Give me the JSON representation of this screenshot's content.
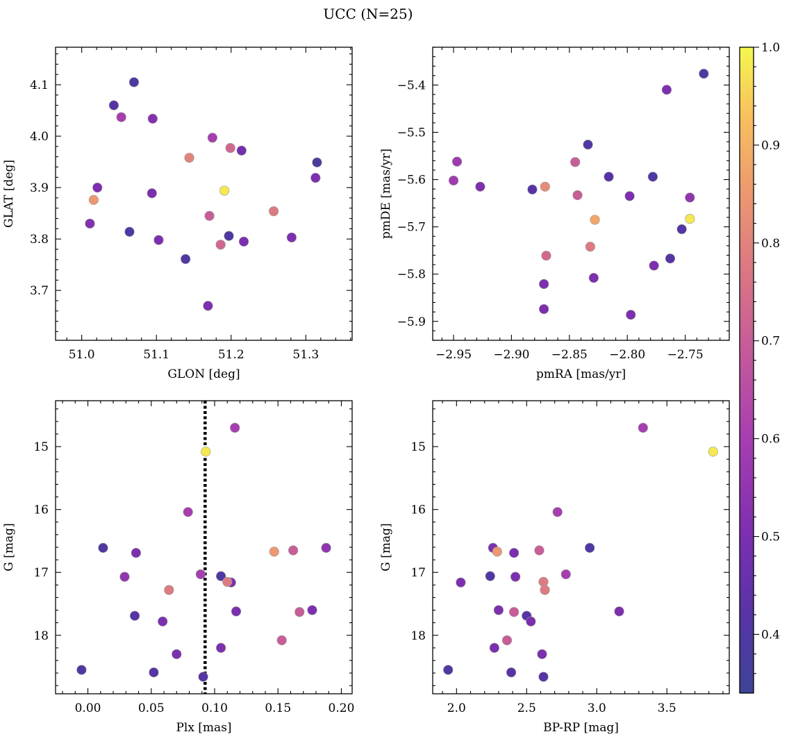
{
  "figure_title": "UCC (N=25)",
  "colorbar": {
    "min": 0.34,
    "max": 1.0,
    "ticks": [
      0.4,
      0.5,
      0.6,
      0.7,
      0.8,
      0.9,
      1.0
    ],
    "tick_labels": [
      "0.4",
      "0.5",
      "0.6",
      "0.7",
      "0.8",
      "0.9",
      "1.0"
    ],
    "colormap": "plasma"
  },
  "chart_data": [
    {
      "type": "scatter",
      "xlabel": "GLON [deg]",
      "ylabel": "GLAT [deg]",
      "xlim": [
        50.965,
        51.362
      ],
      "ylim": [
        3.603,
        4.173
      ],
      "y_inverted": false,
      "xticks": [
        51.0,
        51.1,
        51.2,
        51.3
      ],
      "xtick_labels": [
        "51.0",
        "51.1",
        "51.2",
        "51.3"
      ],
      "yticks": [
        3.7,
        3.8,
        3.9,
        4.0,
        4.1
      ],
      "ytick_labels": [
        "3.7",
        "3.8",
        "3.9",
        "4.0",
        "4.1"
      ],
      "x_minor_step": 0.02,
      "y_minor_step": 0.02,
      "points": [
        {
          "x": 51.07,
          "y": 4.105,
          "c": 0.4
        },
        {
          "x": 51.043,
          "y": 4.06,
          "c": 0.42
        },
        {
          "x": 51.053,
          "y": 4.037,
          "c": 0.6
        },
        {
          "x": 51.095,
          "y": 4.034,
          "c": 0.52
        },
        {
          "x": 51.175,
          "y": 3.997,
          "c": 0.6
        },
        {
          "x": 51.199,
          "y": 3.977,
          "c": 0.73
        },
        {
          "x": 51.214,
          "y": 3.972,
          "c": 0.48
        },
        {
          "x": 51.144,
          "y": 3.958,
          "c": 0.8
        },
        {
          "x": 51.315,
          "y": 3.949,
          "c": 0.38
        },
        {
          "x": 51.313,
          "y": 3.919,
          "c": 0.5
        },
        {
          "x": 51.021,
          "y": 3.9,
          "c": 0.5
        },
        {
          "x": 51.191,
          "y": 3.894,
          "c": 0.98
        },
        {
          "x": 51.094,
          "y": 3.889,
          "c": 0.5
        },
        {
          "x": 51.016,
          "y": 3.876,
          "c": 0.85
        },
        {
          "x": 51.257,
          "y": 3.854,
          "c": 0.78
        },
        {
          "x": 51.171,
          "y": 3.845,
          "c": 0.7
        },
        {
          "x": 51.011,
          "y": 3.83,
          "c": 0.52
        },
        {
          "x": 51.064,
          "y": 3.814,
          "c": 0.4
        },
        {
          "x": 51.197,
          "y": 3.806,
          "c": 0.4
        },
        {
          "x": 51.281,
          "y": 3.803,
          "c": 0.5
        },
        {
          "x": 51.103,
          "y": 3.798,
          "c": 0.5
        },
        {
          "x": 51.217,
          "y": 3.795,
          "c": 0.5
        },
        {
          "x": 51.186,
          "y": 3.789,
          "c": 0.73
        },
        {
          "x": 51.139,
          "y": 3.761,
          "c": 0.4
        },
        {
          "x": 51.169,
          "y": 3.67,
          "c": 0.5
        }
      ]
    },
    {
      "type": "scatter",
      "xlabel": "pmRA [mas/yr]",
      "ylabel": "pmDE [mas/yr]",
      "xlim": [
        -2.968,
        -2.712
      ],
      "ylim": [
        -5.94,
        -5.32
      ],
      "y_inverted": false,
      "xticks": [
        -2.95,
        -2.9,
        -2.85,
        -2.8,
        -2.75
      ],
      "xtick_labels": [
        "−2.95",
        "−2.90",
        "−2.85",
        "−2.80",
        "−2.75"
      ],
      "yticks": [
        -5.9,
        -5.8,
        -5.7,
        -5.6,
        -5.5,
        -5.4
      ],
      "ytick_labels": [
        "−5.9",
        "−5.8",
        "−5.7",
        "−5.6",
        "−5.5",
        "−5.4"
      ],
      "x_minor_step": 0.01,
      "y_minor_step": 0.02,
      "points": [
        {
          "x": -2.734,
          "y": -5.376,
          "c": 0.38
        },
        {
          "x": -2.766,
          "y": -5.41,
          "c": 0.5
        },
        {
          "x": -2.834,
          "y": -5.526,
          "c": 0.4
        },
        {
          "x": -2.947,
          "y": -5.562,
          "c": 0.58
        },
        {
          "x": -2.845,
          "y": -5.563,
          "c": 0.7
        },
        {
          "x": -2.816,
          "y": -5.594,
          "c": 0.42
        },
        {
          "x": -2.778,
          "y": -5.594,
          "c": 0.4
        },
        {
          "x": -2.95,
          "y": -5.602,
          "c": 0.58
        },
        {
          "x": -2.927,
          "y": -5.615,
          "c": 0.5
        },
        {
          "x": -2.871,
          "y": -5.615,
          "c": 0.82
        },
        {
          "x": -2.882,
          "y": -5.621,
          "c": 0.42
        },
        {
          "x": -2.843,
          "y": -5.633,
          "c": 0.7
        },
        {
          "x": -2.798,
          "y": -5.635,
          "c": 0.5
        },
        {
          "x": -2.746,
          "y": -5.638,
          "c": 0.55
        },
        {
          "x": -2.746,
          "y": -5.683,
          "c": 0.98
        },
        {
          "x": -2.828,
          "y": -5.685,
          "c": 0.88
        },
        {
          "x": -2.753,
          "y": -5.705,
          "c": 0.42
        },
        {
          "x": -2.832,
          "y": -5.742,
          "c": 0.78
        },
        {
          "x": -2.87,
          "y": -5.761,
          "c": 0.73
        },
        {
          "x": -2.763,
          "y": -5.767,
          "c": 0.42
        },
        {
          "x": -2.777,
          "y": -5.782,
          "c": 0.5
        },
        {
          "x": -2.829,
          "y": -5.808,
          "c": 0.5
        },
        {
          "x": -2.872,
          "y": -5.821,
          "c": 0.5
        },
        {
          "x": -2.872,
          "y": -5.874,
          "c": 0.5
        },
        {
          "x": -2.797,
          "y": -5.886,
          "c": 0.5
        }
      ]
    },
    {
      "type": "scatter",
      "xlabel": "Plx [mas]",
      "ylabel": "G [mag]",
      "xlim": [
        -0.0255,
        0.2085
      ],
      "ylim": [
        18.93,
        14.27
      ],
      "y_inverted": true,
      "xticks": [
        0.0,
        0.05,
        0.1,
        0.15,
        0.2
      ],
      "xtick_labels": [
        "0.00",
        "0.05",
        "0.10",
        "0.15",
        "0.20"
      ],
      "yticks": [
        15,
        16,
        17,
        18
      ],
      "ytick_labels": [
        "15",
        "16",
        "17",
        "18"
      ],
      "x_minor_step": 0.01,
      "y_minor_step": 0.2,
      "vline": {
        "x": 0.0925,
        "style": "dotted"
      },
      "points": [
        {
          "x": 0.116,
          "y": 14.7,
          "c": 0.6
        },
        {
          "x": 0.093,
          "y": 15.08,
          "c": 0.98
        },
        {
          "x": 0.079,
          "y": 16.04,
          "c": 0.6
        },
        {
          "x": 0.012,
          "y": 16.61,
          "c": 0.4
        },
        {
          "x": 0.188,
          "y": 16.61,
          "c": 0.55
        },
        {
          "x": 0.038,
          "y": 16.69,
          "c": 0.5
        },
        {
          "x": 0.147,
          "y": 16.67,
          "c": 0.85
        },
        {
          "x": 0.162,
          "y": 16.65,
          "c": 0.7
        },
        {
          "x": 0.089,
          "y": 17.03,
          "c": 0.6
        },
        {
          "x": 0.029,
          "y": 17.07,
          "c": 0.55
        },
        {
          "x": 0.105,
          "y": 17.06,
          "c": 0.4
        },
        {
          "x": 0.11,
          "y": 17.15,
          "c": 0.78
        },
        {
          "x": 0.113,
          "y": 17.16,
          "c": 0.5
        },
        {
          "x": 0.064,
          "y": 17.28,
          "c": 0.78
        },
        {
          "x": 0.117,
          "y": 17.62,
          "c": 0.5
        },
        {
          "x": 0.167,
          "y": 17.63,
          "c": 0.7
        },
        {
          "x": 0.177,
          "y": 17.6,
          "c": 0.5
        },
        {
          "x": 0.037,
          "y": 17.69,
          "c": 0.42
        },
        {
          "x": 0.059,
          "y": 17.78,
          "c": 0.5
        },
        {
          "x": 0.153,
          "y": 18.08,
          "c": 0.7
        },
        {
          "x": 0.105,
          "y": 18.2,
          "c": 0.5
        },
        {
          "x": 0.07,
          "y": 18.3,
          "c": 0.5
        },
        {
          "x": -0.005,
          "y": 18.55,
          "c": 0.4
        },
        {
          "x": 0.052,
          "y": 18.59,
          "c": 0.42
        },
        {
          "x": 0.091,
          "y": 18.66,
          "c": 0.42
        }
      ]
    },
    {
      "type": "scatter",
      "xlabel": "BP-RP [mag]",
      "ylabel": "G [mag]",
      "xlim": [
        1.83,
        3.945
      ],
      "ylim": [
        18.93,
        14.27
      ],
      "y_inverted": true,
      "xticks": [
        2.0,
        2.5,
        3.0,
        3.5
      ],
      "xtick_labels": [
        "2.0",
        "2.5",
        "3.0",
        "3.5"
      ],
      "yticks": [
        15,
        16,
        17,
        18
      ],
      "ytick_labels": [
        "15",
        "16",
        "17",
        "18"
      ],
      "x_minor_step": 0.1,
      "y_minor_step": 0.2,
      "points": [
        {
          "x": 3.33,
          "y": 14.7,
          "c": 0.6
        },
        {
          "x": 3.83,
          "y": 15.08,
          "c": 0.98
        },
        {
          "x": 2.72,
          "y": 16.04,
          "c": 0.6
        },
        {
          "x": 2.26,
          "y": 16.61,
          "c": 0.5
        },
        {
          "x": 2.95,
          "y": 16.61,
          "c": 0.4
        },
        {
          "x": 2.29,
          "y": 16.67,
          "c": 0.85
        },
        {
          "x": 2.41,
          "y": 16.69,
          "c": 0.5
        },
        {
          "x": 2.59,
          "y": 16.65,
          "c": 0.7
        },
        {
          "x": 2.78,
          "y": 17.03,
          "c": 0.6
        },
        {
          "x": 2.24,
          "y": 17.06,
          "c": 0.4
        },
        {
          "x": 2.42,
          "y": 17.07,
          "c": 0.5
        },
        {
          "x": 2.03,
          "y": 17.16,
          "c": 0.5
        },
        {
          "x": 2.62,
          "y": 17.15,
          "c": 0.78
        },
        {
          "x": 2.63,
          "y": 17.28,
          "c": 0.78
        },
        {
          "x": 2.3,
          "y": 17.6,
          "c": 0.5
        },
        {
          "x": 2.41,
          "y": 17.63,
          "c": 0.7
        },
        {
          "x": 3.16,
          "y": 17.62,
          "c": 0.5
        },
        {
          "x": 2.5,
          "y": 17.69,
          "c": 0.42
        },
        {
          "x": 2.53,
          "y": 17.78,
          "c": 0.5
        },
        {
          "x": 2.36,
          "y": 18.08,
          "c": 0.7
        },
        {
          "x": 2.27,
          "y": 18.2,
          "c": 0.5
        },
        {
          "x": 2.61,
          "y": 18.3,
          "c": 0.5
        },
        {
          "x": 1.94,
          "y": 18.55,
          "c": 0.4
        },
        {
          "x": 2.39,
          "y": 18.59,
          "c": 0.42
        },
        {
          "x": 2.62,
          "y": 18.66,
          "c": 0.42
        }
      ]
    }
  ]
}
